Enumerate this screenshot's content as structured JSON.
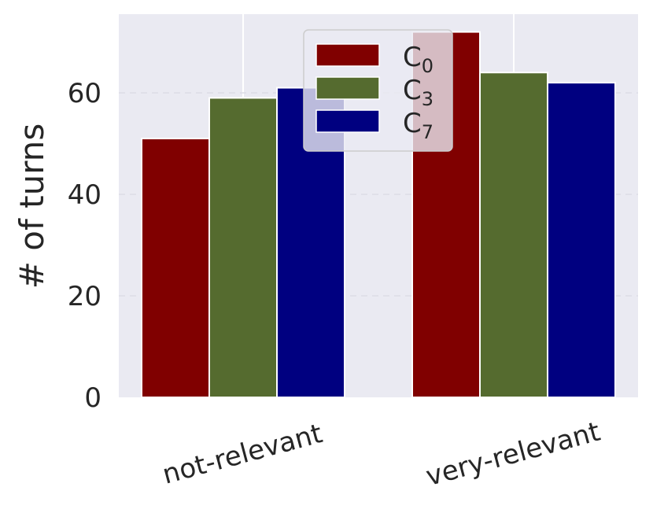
{
  "chart_data": {
    "type": "bar",
    "categories": [
      "not-relevant",
      "very-relevant"
    ],
    "series": [
      {
        "name": "C0",
        "label_base": "C",
        "label_sub": "0",
        "values": [
          51,
          72
        ],
        "color": "#800000"
      },
      {
        "name": "C3",
        "label_base": "C",
        "label_sub": "3",
        "values": [
          59,
          64
        ],
        "color": "#556b2f"
      },
      {
        "name": "C7",
        "label_base": "C",
        "label_sub": "7",
        "values": [
          61,
          62
        ],
        "color": "#000080"
      }
    ],
    "ylabel": "# of turns",
    "yticks": [
      0,
      20,
      40,
      60
    ],
    "ylim": [
      0,
      75.5
    ],
    "legend_position": "top-center",
    "plot_background": "#eaeaf2",
    "grid": true
  }
}
